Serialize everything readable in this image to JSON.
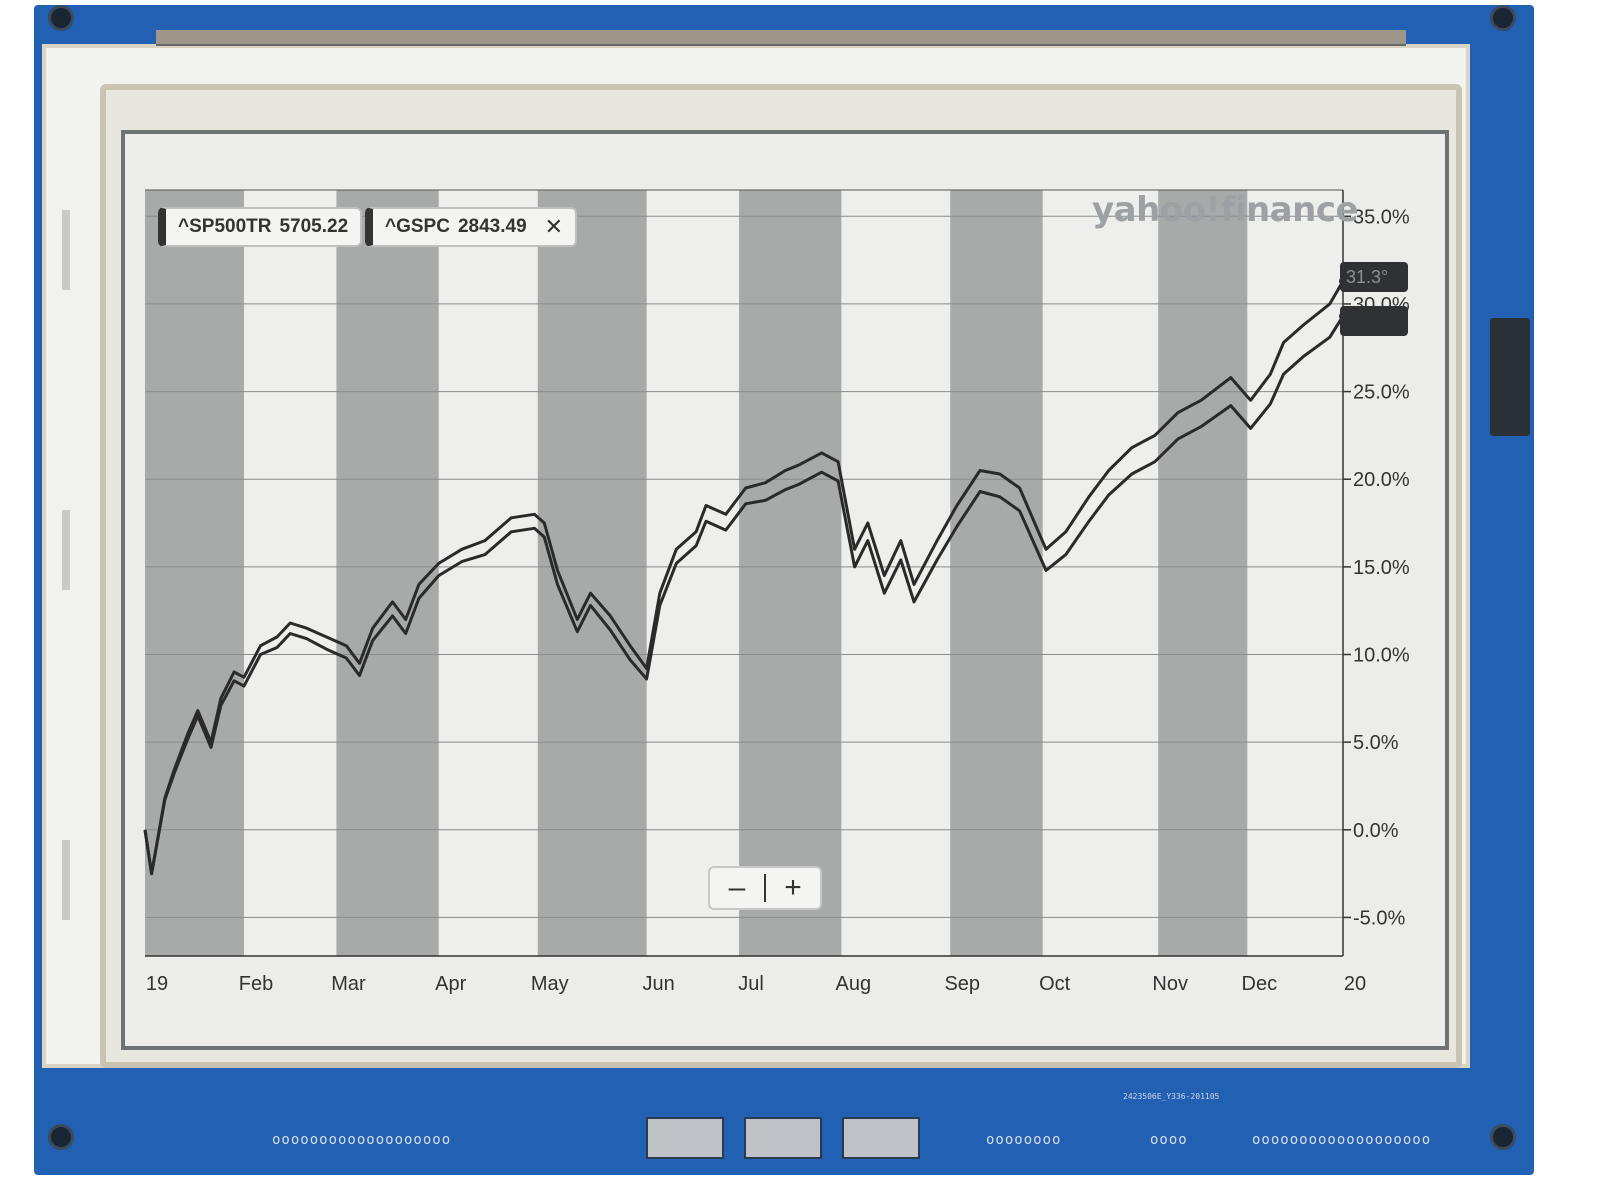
{
  "tickers": [
    {
      "symbol": "^SP500TR",
      "price": "5705.22"
    },
    {
      "symbol": "^GSPC",
      "price": "2843.49",
      "close_icon": "close-icon",
      "close_glyph": "✕"
    }
  ],
  "watermark": "yahoo!finance",
  "last_value_tag": "31.3°",
  "zoom": {
    "minus": "–",
    "plus": "+"
  },
  "board_silkscreen": "2423506E_Y336-201105",
  "chart_data": {
    "type": "line",
    "xlabel": "",
    "ylabel": "",
    "x_range": [
      "2019-01-02",
      "2019-12-31"
    ],
    "x_ticks": [
      {
        "date": "2019-01-02",
        "label": "19"
      },
      {
        "date": "2019-02-01",
        "label": "Feb"
      },
      {
        "date": "2019-03-01",
        "label": "Mar"
      },
      {
        "date": "2019-04-01",
        "label": "Apr"
      },
      {
        "date": "2019-05-01",
        "label": "May"
      },
      {
        "date": "2019-06-03",
        "label": "Jun"
      },
      {
        "date": "2019-07-01",
        "label": "Jul"
      },
      {
        "date": "2019-08-01",
        "label": "Aug"
      },
      {
        "date": "2019-09-03",
        "label": "Sep"
      },
      {
        "date": "2019-10-01",
        "label": "Oct"
      },
      {
        "date": "2019-11-05",
        "label": "Nov"
      },
      {
        "date": "2019-12-02",
        "label": "Dec"
      },
      {
        "date": "2019-12-31",
        "label": "20"
      }
    ],
    "y_ticks": [
      35,
      30,
      25,
      20,
      15,
      10,
      5,
      0,
      -5
    ],
    "y_tick_labels": [
      "35.0%",
      "30.0%",
      "25.0%",
      "20.0%",
      "15.0%",
      "10.0%",
      "5.0%",
      "0.0%",
      "-5.0%"
    ],
    "ylim": [
      -7.2,
      36.5
    ],
    "y_axis_position": "right",
    "grid": true,
    "shaded_bands": [
      [
        "2019-01-02",
        "2019-02-01"
      ],
      [
        "2019-03-01",
        "2019-04-01"
      ],
      [
        "2019-05-01",
        "2019-06-03"
      ],
      [
        "2019-07-01",
        "2019-08-01"
      ],
      [
        "2019-09-03",
        "2019-10-01"
      ],
      [
        "2019-11-05",
        "2019-12-02"
      ]
    ],
    "series": [
      {
        "name": "^SP500TR",
        "x": [
          "2019-01-02",
          "2019-01-04",
          "2019-01-08",
          "2019-01-11",
          "2019-01-15",
          "2019-01-18",
          "2019-01-22",
          "2019-01-25",
          "2019-01-29",
          "2019-02-01",
          "2019-02-06",
          "2019-02-11",
          "2019-02-15",
          "2019-02-20",
          "2019-02-26",
          "2019-03-04",
          "2019-03-08",
          "2019-03-12",
          "2019-03-18",
          "2019-03-22",
          "2019-03-26",
          "2019-04-01",
          "2019-04-08",
          "2019-04-15",
          "2019-04-23",
          "2019-04-30",
          "2019-05-03",
          "2019-05-07",
          "2019-05-13",
          "2019-05-17",
          "2019-05-23",
          "2019-05-29",
          "2019-06-03",
          "2019-06-07",
          "2019-06-12",
          "2019-06-18",
          "2019-06-21",
          "2019-06-27",
          "2019-07-03",
          "2019-07-09",
          "2019-07-15",
          "2019-07-19",
          "2019-07-26",
          "2019-07-31",
          "2019-08-05",
          "2019-08-09",
          "2019-08-14",
          "2019-08-19",
          "2019-08-23",
          "2019-08-30",
          "2019-09-05",
          "2019-09-12",
          "2019-09-18",
          "2019-09-24",
          "2019-10-02",
          "2019-10-08",
          "2019-10-15",
          "2019-10-21",
          "2019-10-28",
          "2019-11-04",
          "2019-11-11",
          "2019-11-18",
          "2019-11-27",
          "2019-12-03",
          "2019-12-09",
          "2019-12-13",
          "2019-12-19",
          "2019-12-27",
          "2019-12-31"
        ],
        "values": [
          0.0,
          -2.5,
          1.8,
          3.5,
          5.5,
          6.8,
          5.0,
          7.5,
          9.0,
          8.7,
          10.5,
          11.0,
          11.8,
          11.5,
          11.0,
          10.5,
          9.5,
          11.5,
          13.0,
          12.0,
          14.0,
          15.2,
          16.0,
          16.5,
          17.8,
          18.0,
          17.5,
          14.8,
          12.0,
          13.5,
          12.2,
          10.5,
          9.2,
          13.5,
          16.0,
          17.0,
          18.5,
          18.0,
          19.5,
          19.8,
          20.5,
          20.8,
          21.5,
          21.0,
          16.0,
          17.5,
          14.5,
          16.5,
          14.0,
          16.5,
          18.5,
          20.5,
          20.3,
          19.5,
          16.0,
          17.0,
          19.0,
          20.5,
          21.8,
          22.5,
          23.8,
          24.5,
          25.8,
          24.5,
          26.0,
          27.8,
          28.8,
          30.0,
          31.3
        ]
      },
      {
        "name": "^GSPC",
        "x": [
          "2019-01-02",
          "2019-01-04",
          "2019-01-08",
          "2019-01-11",
          "2019-01-15",
          "2019-01-18",
          "2019-01-22",
          "2019-01-25",
          "2019-01-29",
          "2019-02-01",
          "2019-02-06",
          "2019-02-11",
          "2019-02-15",
          "2019-02-20",
          "2019-02-26",
          "2019-03-04",
          "2019-03-08",
          "2019-03-12",
          "2019-03-18",
          "2019-03-22",
          "2019-03-26",
          "2019-04-01",
          "2019-04-08",
          "2019-04-15",
          "2019-04-23",
          "2019-04-30",
          "2019-05-03",
          "2019-05-07",
          "2019-05-13",
          "2019-05-17",
          "2019-05-23",
          "2019-05-29",
          "2019-06-03",
          "2019-06-07",
          "2019-06-12",
          "2019-06-18",
          "2019-06-21",
          "2019-06-27",
          "2019-07-03",
          "2019-07-09",
          "2019-07-15",
          "2019-07-19",
          "2019-07-26",
          "2019-07-31",
          "2019-08-05",
          "2019-08-09",
          "2019-08-14",
          "2019-08-19",
          "2019-08-23",
          "2019-08-30",
          "2019-09-05",
          "2019-09-12",
          "2019-09-18",
          "2019-09-24",
          "2019-10-02",
          "2019-10-08",
          "2019-10-15",
          "2019-10-21",
          "2019-10-28",
          "2019-11-04",
          "2019-11-11",
          "2019-11-18",
          "2019-11-27",
          "2019-12-03",
          "2019-12-09",
          "2019-12-13",
          "2019-12-19",
          "2019-12-27",
          "2019-12-31"
        ],
        "values": [
          0.0,
          -2.5,
          1.7,
          3.3,
          5.2,
          6.5,
          4.7,
          7.1,
          8.5,
          8.2,
          10.0,
          10.4,
          11.2,
          10.9,
          10.3,
          9.8,
          8.8,
          10.8,
          12.2,
          11.2,
          13.2,
          14.5,
          15.3,
          15.7,
          17.0,
          17.2,
          16.7,
          14.0,
          11.3,
          12.8,
          11.4,
          9.7,
          8.6,
          12.8,
          15.2,
          16.2,
          17.6,
          17.1,
          18.6,
          18.8,
          19.4,
          19.7,
          20.4,
          19.9,
          15.0,
          16.5,
          13.5,
          15.4,
          13.0,
          15.4,
          17.3,
          19.3,
          19.0,
          18.2,
          14.8,
          15.7,
          17.6,
          19.1,
          20.3,
          21.0,
          22.3,
          23.0,
          24.2,
          22.9,
          24.3,
          26.0,
          27.0,
          28.1,
          29.3
        ]
      }
    ]
  }
}
